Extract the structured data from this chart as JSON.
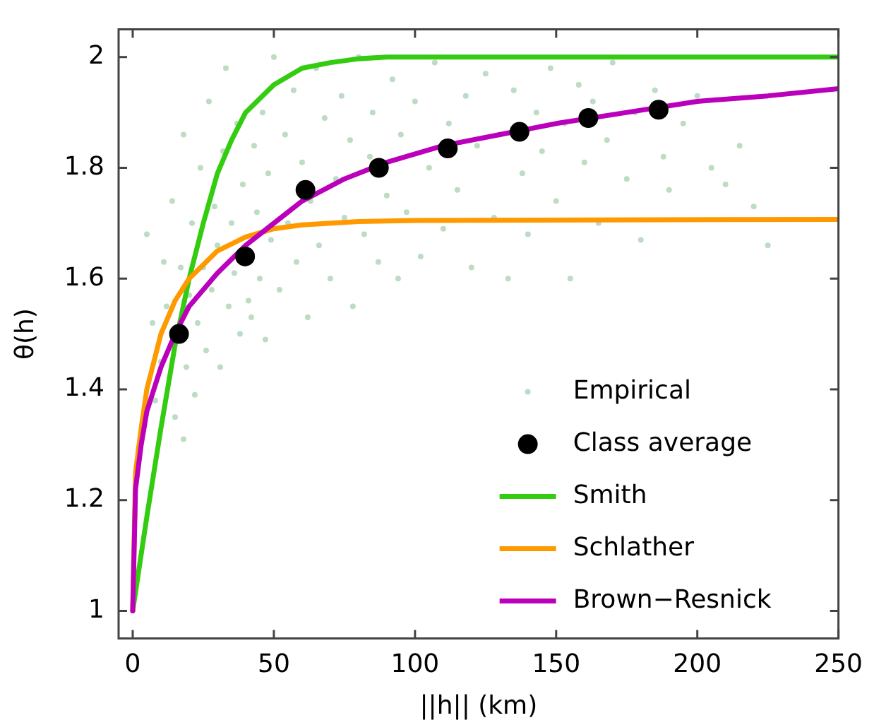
{
  "chart_data": {
    "type": "line",
    "xlabel": "||h|| (km)",
    "ylabel": "θ(h)",
    "xlim": [
      -5,
      250
    ],
    "ylim": [
      0.95,
      2.05
    ],
    "xticks": [
      0,
      50,
      100,
      150,
      200,
      250
    ],
    "yticks": [
      1,
      1.2,
      1.4,
      1.6,
      1.8,
      2
    ],
    "grid": false,
    "legend": "bottom right",
    "series": [
      {
        "name": "Empirical",
        "type": "scatter",
        "marker": "circle",
        "color": "#bcdcc4",
        "x": [
          5,
          7,
          8,
          10,
          11,
          12,
          13,
          14,
          15,
          17,
          18,
          18,
          19,
          20,
          21,
          22,
          23,
          24,
          25,
          26,
          27,
          28,
          29,
          30,
          31,
          32,
          33,
          34,
          35,
          36,
          37,
          38,
          39,
          41,
          42,
          43,
          44,
          45,
          46,
          47,
          48,
          49,
          50,
          52,
          54,
          55,
          57,
          58,
          60,
          62,
          63,
          65,
          66,
          68,
          70,
          72,
          74,
          75,
          77,
          78,
          80,
          82,
          84,
          85,
          87,
          90,
          92,
          94,
          95,
          97,
          100,
          102,
          105,
          107,
          110,
          112,
          115,
          118,
          120,
          122,
          125,
          128,
          130,
          133,
          135,
          138,
          140,
          143,
          145,
          148,
          150,
          153,
          155,
          158,
          160,
          163,
          165,
          168,
          170,
          175,
          178,
          180,
          185,
          188,
          190,
          195,
          200,
          205,
          210,
          215,
          220,
          225
        ],
        "values": [
          1.68,
          1.52,
          1.38,
          1.45,
          1.63,
          1.55,
          1.42,
          1.74,
          1.35,
          1.62,
          1.31,
          1.86,
          1.44,
          1.57,
          1.7,
          1.39,
          1.52,
          1.8,
          1.62,
          1.47,
          1.92,
          1.58,
          1.73,
          1.66,
          1.44,
          1.83,
          1.98,
          1.55,
          1.7,
          1.61,
          1.88,
          1.5,
          1.77,
          1.56,
          1.53,
          1.84,
          1.72,
          1.6,
          1.9,
          1.49,
          1.79,
          1.67,
          2,
          1.58,
          1.86,
          1.7,
          1.94,
          1.63,
          1.81,
          1.53,
          1.74,
          1.98,
          1.66,
          1.89,
          1.6,
          1.78,
          1.93,
          1.71,
          1.85,
          1.55,
          2,
          1.68,
          1.82,
          1.9,
          1.63,
          1.75,
          1.96,
          1.6,
          1.86,
          1.72,
          1.92,
          1.64,
          1.8,
          1.99,
          1.69,
          1.88,
          1.76,
          1.93,
          1.62,
          1.84,
          1.97,
          1.71,
          1.86,
          1.6,
          1.94,
          1.79,
          1.68,
          1.9,
          1.83,
          1.98,
          1.74,
          1.88,
          1.6,
          1.95,
          1.81,
          1.92,
          1.7,
          1.85,
          1.99,
          1.78,
          1.9,
          1.67,
          1.94,
          1.82,
          1.76,
          1.88,
          1.93,
          1.8,
          1.77,
          1.84,
          1.73,
          1.66
        ]
      },
      {
        "name": "Class average",
        "type": "scatter",
        "marker": "circle",
        "color": "#000000",
        "x": [
          16.4,
          39.8,
          61.2,
          87.2,
          111.6,
          137,
          161.4,
          186.3
        ],
        "values": [
          1.5,
          1.64,
          1.76,
          1.8,
          1.835,
          1.865,
          1.89,
          1.905
        ]
      },
      {
        "name": "Smith",
        "color": "#33cc11",
        "x": [
          0,
          5,
          10,
          15,
          20,
          25,
          30,
          35,
          40,
          50,
          60,
          70,
          80,
          90,
          250
        ],
        "values": [
          1,
          1.17,
          1.33,
          1.48,
          1.6,
          1.7,
          1.79,
          1.85,
          1.9,
          1.95,
          1.98,
          1.99,
          1.997,
          2,
          2
        ]
      },
      {
        "name": "Schlather",
        "color": "#ff9900",
        "x": [
          0,
          1,
          3,
          5,
          10,
          15,
          20,
          30,
          40,
          50,
          60,
          80,
          100,
          250
        ],
        "values": [
          1,
          1.25,
          1.33,
          1.4,
          1.5,
          1.56,
          1.6,
          1.65,
          1.675,
          1.69,
          1.697,
          1.703,
          1.705,
          1.707
        ]
      },
      {
        "name": "Brown−Resnick",
        "color": "#bb00bb",
        "x": [
          0,
          1,
          3,
          5,
          10,
          15,
          20,
          30,
          40,
          50,
          60,
          75,
          90,
          110,
          130,
          150,
          175,
          200,
          225,
          250
        ],
        "values": [
          1,
          1.22,
          1.3,
          1.36,
          1.44,
          1.5,
          1.55,
          1.61,
          1.66,
          1.7,
          1.74,
          1.78,
          1.81,
          1.84,
          1.86,
          1.88,
          1.9,
          1.92,
          1.93,
          1.943
        ]
      }
    ]
  }
}
